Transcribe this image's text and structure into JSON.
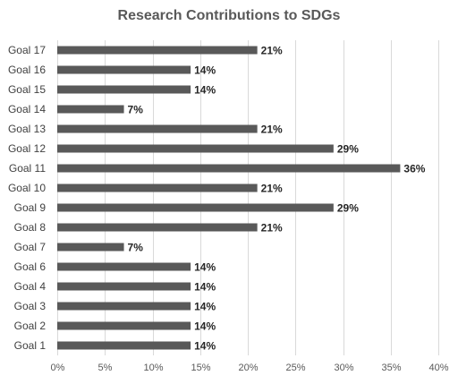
{
  "chart_data": {
    "type": "bar",
    "orientation": "horizontal",
    "title": "Research Contributions to SDGs",
    "xlabel": "",
    "ylabel": "",
    "categories": [
      "Goal 17",
      "Goal 16",
      "Goal 15",
      "Goal 14",
      "Goal 13",
      "Goal 12",
      "Goal 11",
      "Goal 10",
      "Goal 9",
      "Goal 8",
      "Goal 7",
      "Goal 6",
      "Goal 4",
      "Goal 3",
      "Goal 2",
      "Goal 1"
    ],
    "values": [
      21,
      14,
      14,
      7,
      21,
      29,
      36,
      21,
      29,
      21,
      7,
      14,
      14,
      14,
      14,
      14
    ],
    "data_labels": [
      "21%",
      "14%",
      "14%",
      "7%",
      "21%",
      "29%",
      "36%",
      "21%",
      "29%",
      "21%",
      "7%",
      "14%",
      "14%",
      "14%",
      "14%",
      "14%"
    ],
    "xlim": [
      0,
      40
    ],
    "x_ticks": [
      "0%",
      "5%",
      "10%",
      "15%",
      "20%",
      "25%",
      "30%",
      "35%",
      "40%"
    ],
    "grid": true,
    "legend": "none",
    "bar_color": "#595959",
    "grid_color": "#d9d9d9"
  }
}
